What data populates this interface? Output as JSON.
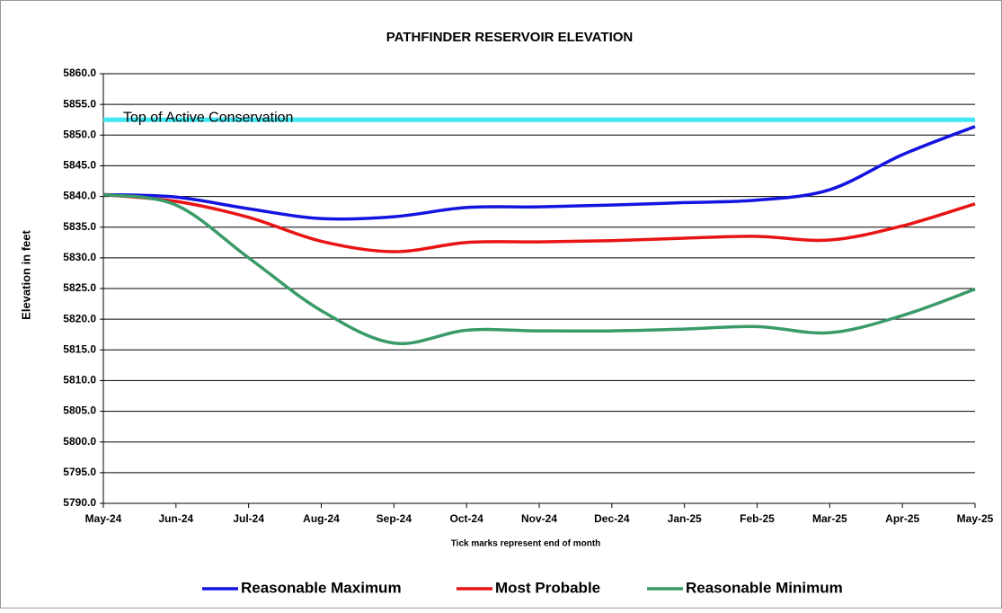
{
  "chart_data": {
    "type": "line",
    "title": "PATHFINDER RESERVOIR ELEVATION",
    "y_label": "Elevation in feet",
    "x_note": "Tick marks represent end of month",
    "categories": [
      "May-24",
      "Jun-24",
      "Jul-24",
      "Aug-24",
      "Sep-24",
      "Oct-24",
      "Nov-24",
      "Dec-24",
      "Jan-25",
      "Feb-25",
      "Mar-25",
      "Apr-25",
      "May-25"
    ],
    "series": [
      {
        "name": "Reasonable Maximum",
        "color": "#1414e0",
        "values": [
          5840.3,
          5839.9,
          5838.0,
          5836.4,
          5836.7,
          5838.2,
          5838.3,
          5838.6,
          5839.0,
          5839.4,
          5841.1,
          5846.8,
          5851.4
        ]
      },
      {
        "name": "Most Probable",
        "color": "#e81414",
        "values": [
          5840.3,
          5839.2,
          5836.6,
          5832.7,
          5831.0,
          5832.5,
          5832.6,
          5832.8,
          5833.2,
          5833.5,
          5832.9,
          5835.2,
          5838.8
        ]
      },
      {
        "name": "Reasonable Minimum",
        "color": "#3a9a68",
        "values": [
          5840.3,
          5838.6,
          5830.0,
          5821.4,
          5816.1,
          5818.2,
          5818.1,
          5818.1,
          5818.4,
          5818.8,
          5817.8,
          5820.6,
          5824.9
        ]
      }
    ],
    "reference_lines": [
      {
        "label": "Top of Active Conservation",
        "value": 5852.5,
        "color": "#3fe8f2"
      }
    ],
    "ylim": [
      5790,
      5860
    ],
    "yticks": [
      {
        "value": 5790,
        "label": "5790.0"
      },
      {
        "value": 5795,
        "label": "5795.0"
      },
      {
        "value": 5800,
        "label": "5800.0"
      },
      {
        "value": 5805,
        "label": "5805.0"
      },
      {
        "value": 5810,
        "label": "5810.0"
      },
      {
        "value": 5815,
        "label": "5815.0"
      },
      {
        "value": 5820,
        "label": "5820.0"
      },
      {
        "value": 5825,
        "label": "5825.0"
      },
      {
        "value": 5830,
        "label": "5830.0"
      },
      {
        "value": 5835,
        "label": "5835.0"
      },
      {
        "value": 5840,
        "label": "5840.0"
      },
      {
        "value": 5845,
        "label": "5845.0"
      },
      {
        "value": 5850,
        "label": "5850.0"
      },
      {
        "value": 5855,
        "label": "5855.0"
      },
      {
        "value": 5860,
        "label": "5860.0"
      }
    ],
    "grid": true
  }
}
